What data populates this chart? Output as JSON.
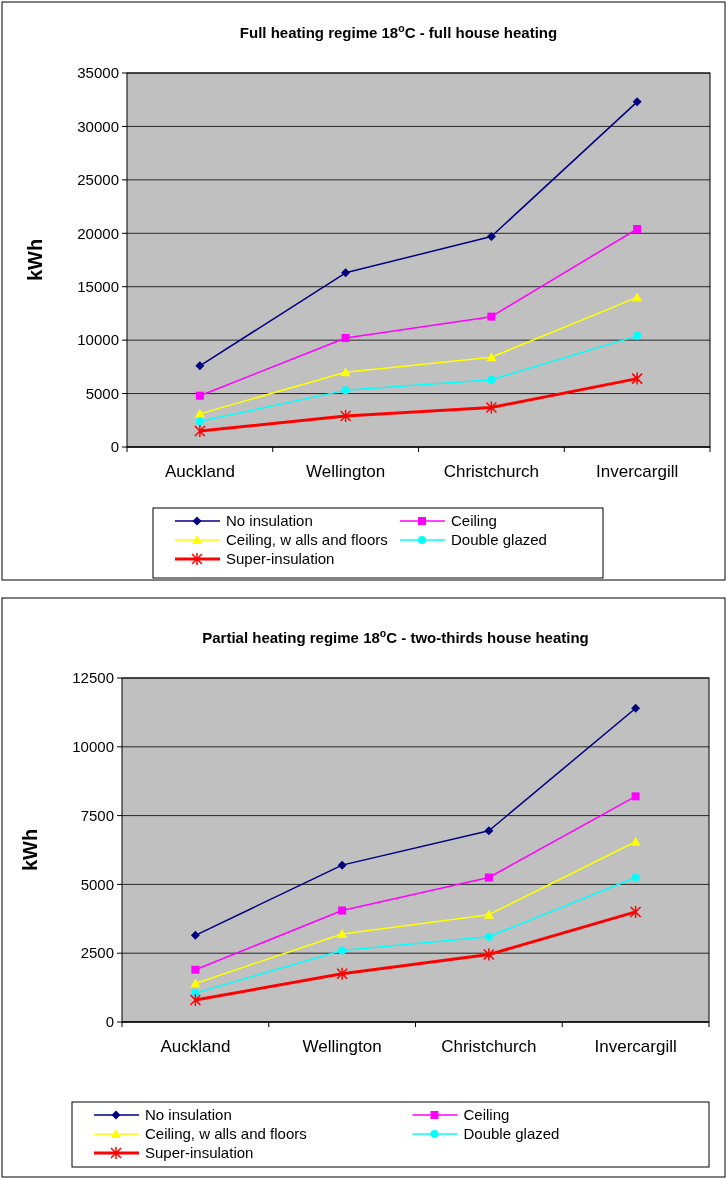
{
  "chart_data": [
    {
      "type": "line",
      "title": "Full heating regime 18$^{o}$C - full house heating",
      "ylabel": "kWh",
      "categories": [
        "Auckland",
        "Wellington",
        "Christchurch",
        "Invercargill"
      ],
      "ylim": [
        0,
        35000
      ],
      "yticks": [
        0,
        5000,
        10000,
        15000,
        20000,
        25000,
        30000,
        35000
      ],
      "grid": "y",
      "legend": "bottom",
      "series": [
        {
          "name": "No insulation",
          "color": "#000080",
          "marker": "diamond",
          "values": [
            7600,
            16300,
            19700,
            32300
          ]
        },
        {
          "name": "Ceiling",
          "color": "#ff00ff",
          "marker": "square",
          "values": [
            4800,
            10200,
            12200,
            20400
          ]
        },
        {
          "name": "Ceiling, w alls and floors",
          "color": "#ffff00",
          "marker": "triangle",
          "values": [
            3100,
            7000,
            8400,
            14000
          ]
        },
        {
          "name": "Double glazed",
          "color": "#00ffff",
          "marker": "circle",
          "values": [
            2400,
            5300,
            6300,
            10400
          ]
        },
        {
          "name": "Super-insulation",
          "color": "#ff0000",
          "marker": "cross",
          "values": [
            1500,
            2900,
            3700,
            6400
          ]
        }
      ]
    },
    {
      "type": "line",
      "title": "Partial heating regime 18$^{o}$C - two-thirds house heating",
      "ylabel": "kWh",
      "categories": [
        "Auckland",
        "Wellington",
        "Christchurch",
        "Invercargill"
      ],
      "ylim": [
        0,
        12500
      ],
      "yticks": [
        0,
        2500,
        5000,
        7500,
        10000,
        12500
      ],
      "grid": "y",
      "legend": "bottom",
      "series": [
        {
          "name": "No insulation",
          "color": "#000080",
          "marker": "diamond",
          "values": [
            3150,
            5700,
            6950,
            11400
          ]
        },
        {
          "name": "Ceiling",
          "color": "#ff00ff",
          "marker": "square",
          "values": [
            1900,
            4050,
            5250,
            8200
          ]
        },
        {
          "name": "Ceiling, w alls and floors",
          "color": "#ffff00",
          "marker": "triangle",
          "values": [
            1400,
            3200,
            3900,
            6550
          ]
        },
        {
          "name": "Double glazed",
          "color": "#00ffff",
          "marker": "circle",
          "values": [
            1050,
            2600,
            3100,
            5250
          ]
        },
        {
          "name": "Super-insulation",
          "color": "#ff0000",
          "marker": "cross",
          "values": [
            800,
            1750,
            2450,
            4000
          ]
        }
      ]
    }
  ]
}
